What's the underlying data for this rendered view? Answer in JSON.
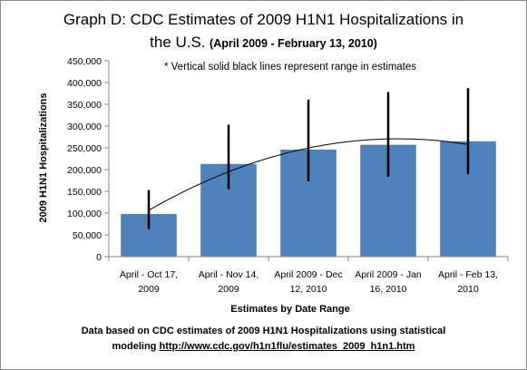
{
  "chart_data": {
    "type": "bar",
    "title": "Graph D: CDC Estimates of 2009 H1N1 Hospitalizations in the U.S.",
    "title_line1": "Graph D: CDC Estimates of 2009 H1N1 Hospitalizations in",
    "title_line2_main": "the U.S.",
    "title_line2_sub": "(April 2009 - February 13, 2010)",
    "annotation": "* Vertical solid black lines represent range in estimates",
    "xlabel": "Estimates by Date Range",
    "ylabel": "2009 H1N1 Hospitalizations",
    "ylim": [
      0,
      450000
    ],
    "yticks": [
      0,
      50000,
      100000,
      150000,
      200000,
      250000,
      300000,
      350000,
      400000,
      450000
    ],
    "ytick_labels": [
      "0",
      "50,000",
      "100,000",
      "150,000",
      "200,000",
      "250,000",
      "300,000",
      "350,000",
      "400,000",
      "450,000"
    ],
    "categories": [
      [
        "April - Oct 17,",
        "2009"
      ],
      [
        "April - Nov 14,",
        "2009"
      ],
      [
        "April 2009 - Dec",
        "12, 2010"
      ],
      [
        "April 2009 - Jan",
        "16, 2010"
      ],
      [
        "April - Feb 13,",
        "2010"
      ]
    ],
    "values": [
      98000,
      213000,
      246000,
      257000,
      265000
    ],
    "range_low": [
      63000,
      155000,
      173000,
      183000,
      189000
    ],
    "range_high": [
      153000,
      303000,
      361000,
      378000,
      387000
    ],
    "trendline": "polynomial",
    "grid": false,
    "legend": "none",
    "bar_color": "#4F81BD"
  },
  "footer": {
    "text": "Data based on CDC estimates of 2009 H1N1 Hospitalizations using statistical",
    "prefix": "modeling ",
    "link": "http://www.cdc.gov/h1n1flu/estimates_2009_h1n1.htm"
  }
}
